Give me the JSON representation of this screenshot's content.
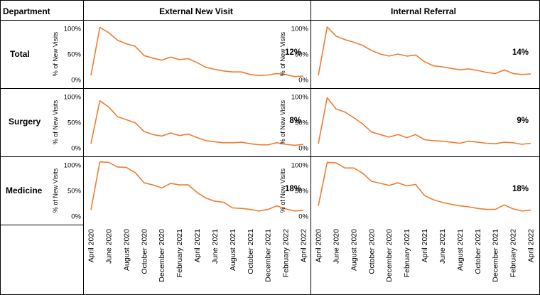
{
  "header": {
    "department_label": "Department",
    "columns": [
      "External New Visit",
      "Internal Referral"
    ]
  },
  "rows": [
    "Total",
    "Surgery",
    "Medicine"
  ],
  "y_axis": {
    "label": "% of New Visits",
    "ticks": [
      "100%",
      "50%",
      "0%"
    ]
  },
  "x_tick_labels": [
    "April 2020",
    "June 2020",
    "August 2020",
    "October 2020",
    "December 2020",
    "February 2021",
    "April 2021",
    "June 2021",
    "August 2021",
    "October 2021",
    "December 2021",
    "February 2022",
    "April 2022"
  ],
  "colors": {
    "line": "#ED7D31"
  },
  "chart_data": {
    "type": "line",
    "ylabel": "% of New Visits",
    "ylim": [
      0,
      100
    ],
    "x": [
      "April 2020",
      "May 2020",
      "June 2020",
      "July 2020",
      "August 2020",
      "September 2020",
      "October 2020",
      "November 2020",
      "December 2020",
      "January 2021",
      "February 2021",
      "March 2021",
      "April 2021",
      "May 2021",
      "June 2021",
      "July 2021",
      "August 2021",
      "September 2021",
      "October 2021",
      "November 2021",
      "December 2021",
      "January 2022",
      "February 2022",
      "March 2022",
      "April 2022"
    ],
    "panels": [
      {
        "row": "Total",
        "column": "External New Visit",
        "annotation": "12%",
        "values": [
          8,
          102,
          92,
          77,
          70,
          65,
          47,
          42,
          38,
          44,
          39,
          41,
          33,
          24,
          20,
          17,
          15,
          15,
          10,
          8,
          9,
          12,
          10,
          6,
          7
        ]
      },
      {
        "row": "Total",
        "column": "Internal Referral",
        "annotation": "14%",
        "values": [
          8,
          103,
          85,
          78,
          73,
          67,
          57,
          50,
          46,
          50,
          46,
          48,
          35,
          27,
          25,
          22,
          19,
          21,
          18,
          14,
          12,
          19,
          12,
          10,
          11
        ]
      },
      {
        "row": "Surgery",
        "column": "External New Visit",
        "annotation": "8%",
        "values": [
          8,
          92,
          80,
          61,
          55,
          49,
          32,
          26,
          23,
          29,
          24,
          27,
          20,
          14,
          12,
          10,
          10,
          11,
          8,
          6,
          6,
          10,
          7,
          5,
          7
        ]
      },
      {
        "row": "Surgery",
        "column": "Internal Referral",
        "annotation": "9%",
        "values": [
          8,
          98,
          76,
          70,
          59,
          47,
          31,
          26,
          21,
          26,
          20,
          26,
          16,
          14,
          13,
          11,
          9,
          13,
          11,
          9,
          8,
          11,
          10,
          7,
          9
        ]
      },
      {
        "row": "Medicine",
        "column": "External New Visit",
        "annotation": "18%",
        "values": [
          12,
          106,
          105,
          96,
          95,
          85,
          65,
          61,
          55,
          64,
          61,
          61,
          46,
          35,
          29,
          27,
          16,
          15,
          13,
          10,
          13,
          20,
          14,
          10,
          11
        ]
      },
      {
        "row": "Medicine",
        "column": "Internal Referral",
        "annotation": "18%",
        "values": [
          20,
          105,
          104,
          94,
          94,
          84,
          68,
          64,
          60,
          65,
          59,
          62,
          40,
          32,
          27,
          23,
          20,
          18,
          15,
          13,
          13,
          22,
          14,
          10,
          12
        ]
      }
    ]
  }
}
